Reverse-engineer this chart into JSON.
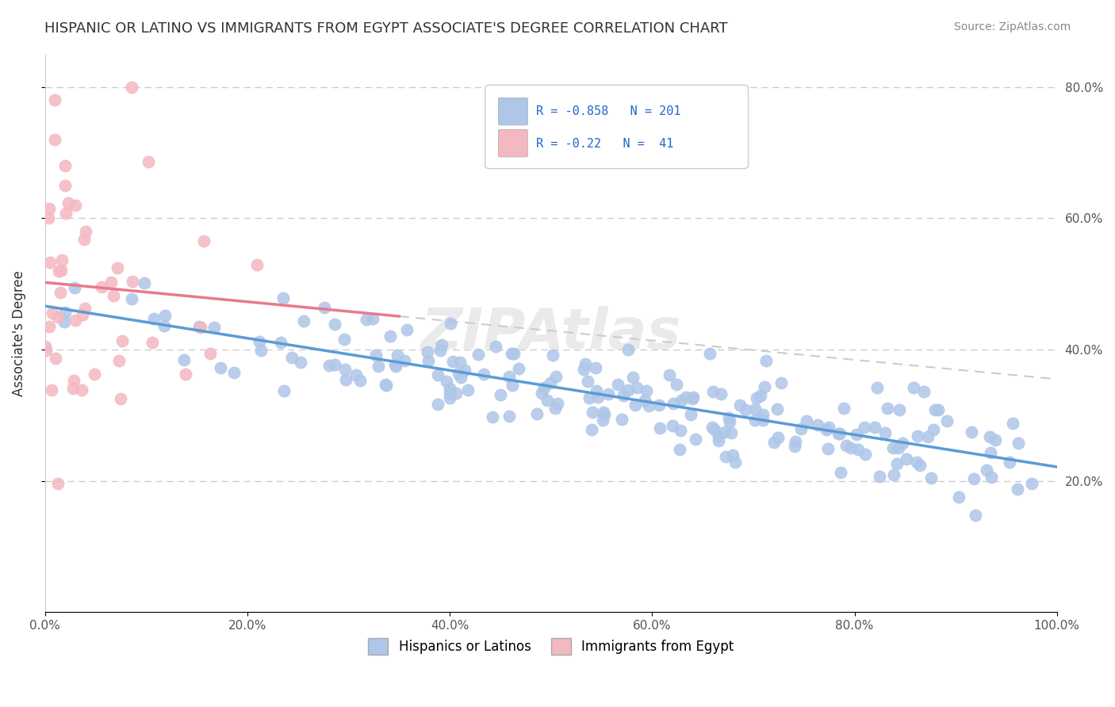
{
  "title": "HISPANIC OR LATINO VS IMMIGRANTS FROM EGYPT ASSOCIATE'S DEGREE CORRELATION CHART",
  "source": "Source: ZipAtlas.com",
  "ylabel": "Associate's Degree",
  "xlabel": "",
  "legend_entries": [
    {
      "label": "Hispanics or Latinos",
      "color": "#aec6e8",
      "R": -0.858,
      "N": 201
    },
    {
      "label": "Immigrants from Egypt",
      "color": "#f4b8c1",
      "R": -0.22,
      "N": 41
    }
  ],
  "blue_color": "#5b9bd5",
  "pink_color": "#e87a8d",
  "blue_scatter_color": "#aec6e8",
  "pink_scatter_color": "#f4b8c1",
  "background_color": "#ffffff",
  "grid_color": "#cccccc",
  "watermark": "ZIPAtlas",
  "xlim": [
    0,
    1
  ],
  "ylim": [
    0,
    0.85
  ],
  "blue_R": -0.858,
  "blue_N": 201,
  "pink_R": -0.22,
  "pink_N": 41,
  "title_fontsize": 13,
  "axis_label_fontsize": 12
}
